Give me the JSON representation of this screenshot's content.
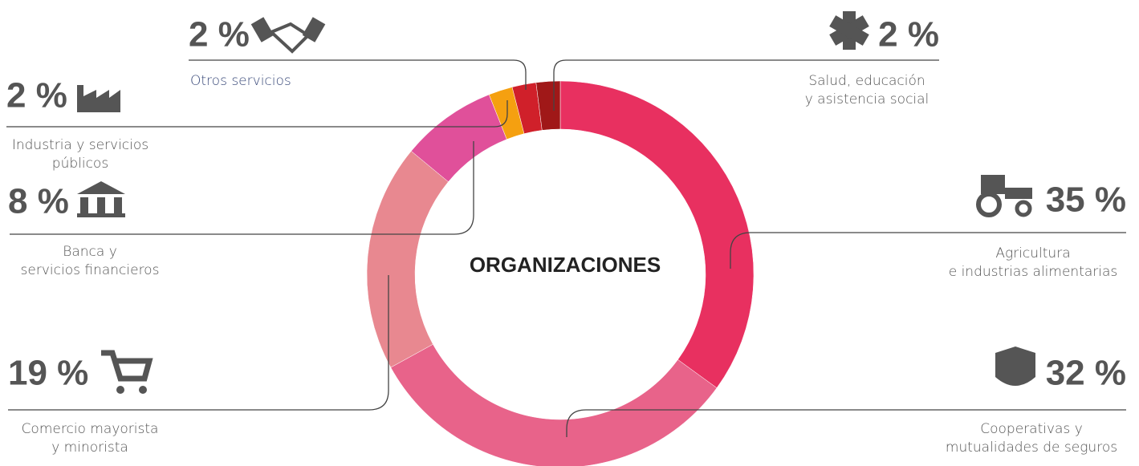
{
  "chart_data": {
    "type": "donut",
    "center_label": "ORGANIZACIONES",
    "categories": [
      "Agricultura e industrias alimentarias",
      "Cooperativas y mutualidades de seguros",
      "Comercio mayorista y minorista",
      "Banca y servicios financieros",
      "Industria y servicios públicos",
      "Otros servicios",
      "Salud, educación y asistencia social"
    ],
    "labels": [
      [
        "Agricultura",
        "e industrias alimentarias"
      ],
      [
        "Cooperativas y",
        "mutualidades de seguros"
      ],
      [
        "Comercio mayorista",
        "y minorista"
      ],
      [
        "Banca y",
        "servicios financieros"
      ],
      [
        "Industria y servicios",
        "públicos"
      ],
      [
        "Otros servicios"
      ],
      [
        "Salud, educación",
        "y asistencia social"
      ]
    ],
    "values": [
      35,
      32,
      19,
      8,
      2,
      2,
      2
    ],
    "value_labels": [
      "35 %",
      "32 %",
      "19 %",
      "8 %",
      "2 %",
      "2 %",
      "2 %"
    ],
    "colors": [
      "#e83060",
      "#e8638a",
      "#e88890",
      "#e0509a",
      "#f5a010",
      "#d0202a",
      "#a01818"
    ]
  }
}
